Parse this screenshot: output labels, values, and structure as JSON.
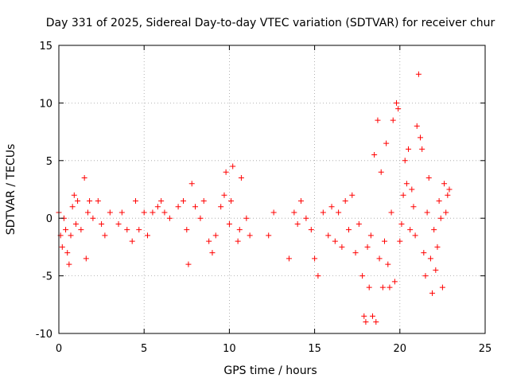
{
  "chart_data": {
    "type": "scatter",
    "title": "Day 331 of 2025, Sidereal Day-to-day VTEC variation (SDTVAR) for receiver chur",
    "xlabel": "GPS time / hours",
    "ylabel": "SDTVAR / TECUs",
    "xlim": [
      0,
      25
    ],
    "ylim": [
      -10,
      15
    ],
    "xticks": [
      0,
      5,
      10,
      15,
      20,
      25
    ],
    "yticks": [
      -10,
      -5,
      0,
      5,
      10,
      15
    ],
    "grid": true,
    "marker": "+",
    "colors": {
      "series": "#ff0000",
      "grid": "#a0a0a0",
      "axis": "#000000"
    },
    "series": [
      {
        "name": "SDTVAR",
        "x": [
          0.0,
          0.1,
          0.2,
          0.3,
          0.4,
          0.5,
          0.6,
          0.7,
          0.8,
          0.9,
          1.0,
          1.1,
          1.3,
          1.5,
          1.6,
          1.7,
          1.8,
          2.0,
          2.3,
          2.5,
          2.7,
          3.0,
          3.5,
          3.7,
          4.0,
          4.3,
          4.5,
          4.7,
          5.0,
          5.2,
          5.5,
          5.8,
          6.0,
          6.2,
          6.5,
          7.0,
          7.3,
          7.5,
          7.6,
          7.8,
          8.0,
          8.3,
          8.5,
          8.8,
          9.0,
          9.2,
          9.5,
          9.7,
          9.8,
          10.0,
          10.1,
          10.2,
          10.5,
          10.6,
          10.7,
          11.0,
          11.2,
          12.3,
          12.6,
          13.5,
          13.8,
          14.0,
          14.2,
          14.5,
          14.8,
          15.0,
          15.2,
          15.5,
          15.8,
          16.0,
          16.2,
          16.4,
          16.6,
          16.8,
          17.0,
          17.2,
          17.4,
          17.6,
          17.8,
          17.9,
          18.0,
          18.1,
          18.2,
          18.3,
          18.4,
          18.5,
          18.6,
          18.7,
          18.8,
          18.9,
          19.0,
          19.1,
          19.2,
          19.3,
          19.4,
          19.5,
          19.6,
          19.7,
          19.8,
          19.9,
          20.0,
          20.1,
          20.2,
          20.3,
          20.4,
          20.5,
          20.6,
          20.7,
          20.8,
          20.9,
          21.0,
          21.1,
          21.2,
          21.3,
          21.4,
          21.5,
          21.6,
          21.7,
          21.8,
          21.9,
          22.0,
          22.1,
          22.2,
          22.3,
          22.4,
          22.5,
          22.6,
          22.7,
          22.8,
          22.9
        ],
        "y": [
          0.5,
          -1.5,
          -2.5,
          0.0,
          -1.0,
          -3.0,
          -4.0,
          -1.5,
          1.0,
          2.0,
          -0.5,
          1.5,
          -1.0,
          3.5,
          -3.5,
          0.5,
          1.5,
          0.0,
          1.5,
          -0.5,
          -1.5,
          0.5,
          -0.5,
          0.5,
          -1.0,
          -2.0,
          1.5,
          -1.0,
          0.5,
          -1.5,
          0.5,
          1.0,
          1.5,
          0.5,
          0.0,
          1.0,
          1.5,
          -1.0,
          -4.0,
          3.0,
          1.0,
          0.0,
          1.5,
          -2.0,
          -3.0,
          -1.5,
          1.0,
          2.0,
          4.0,
          -0.5,
          1.5,
          4.5,
          -2.0,
          -1.0,
          3.5,
          0.0,
          -1.5,
          -1.5,
          0.5,
          -3.5,
          0.5,
          -0.5,
          1.5,
          0.0,
          -1.0,
          -3.5,
          -5.0,
          0.5,
          -1.5,
          1.0,
          -2.0,
          0.5,
          -2.5,
          1.5,
          -1.0,
          2.0,
          -3.0,
          -0.5,
          -5.0,
          -8.5,
          -9.0,
          -2.5,
          -6.0,
          -1.5,
          -8.5,
          5.5,
          -9.0,
          8.5,
          -3.5,
          4.0,
          -6.0,
          -2.0,
          6.5,
          -4.0,
          -6.0,
          0.5,
          8.5,
          -5.5,
          10.0,
          9.5,
          -2.0,
          -0.5,
          2.0,
          5.0,
          3.0,
          6.0,
          -1.0,
          2.5,
          1.0,
          -1.5,
          8.0,
          12.5,
          7.0,
          6.0,
          -3.0,
          -5.0,
          0.5,
          3.5,
          -3.5,
          -6.5,
          -1.0,
          -4.5,
          -2.5,
          1.5,
          0.0,
          -6.0,
          3.0,
          0.5,
          2.0,
          2.5
        ]
      }
    ]
  }
}
